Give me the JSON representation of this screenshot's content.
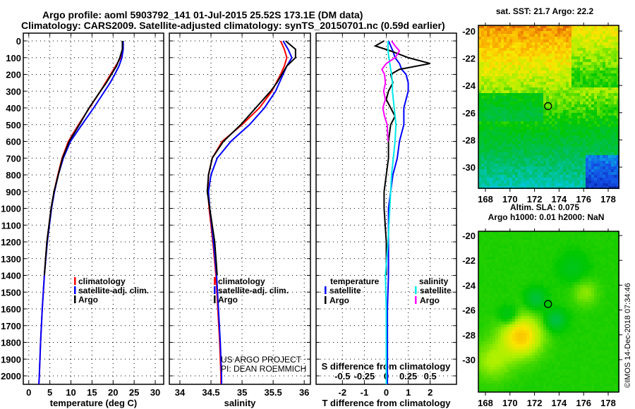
{
  "title": {
    "line1": "Argo profile: aoml 5903792_141 01-Jul-2015 25.52S 173.1E (DM data)",
    "line2": "Climatology: CARS2009. Satellite-adjusted climatology: synTS_20150701.nc (0.59d earlier)"
  },
  "credit": {
    "line1": "US ARGO PROJECT",
    "line2": "PI: DEAN ROEMMICH"
  },
  "stamp": "©IMOS 14-Dec-2018 07:34:46",
  "colors": {
    "climatology": "#ff0000",
    "satellite": "#0000ff",
    "argo": "#000000",
    "s_satellite": "#00e8e8",
    "s_argo": "#ff00ff"
  },
  "chart_data": [
    {
      "type": "line",
      "name": "temperature",
      "xlabel": "temperature (deg C)",
      "xlim": [
        -1.3,
        32
      ],
      "xticks": [
        0,
        5,
        10,
        15,
        20,
        25,
        30
      ],
      "ylim": [
        2050,
        -46
      ],
      "yticks": [
        0,
        100,
        200,
        300,
        400,
        500,
        600,
        700,
        800,
        900,
        1000,
        1100,
        1200,
        1300,
        1400,
        1500,
        1600,
        1700,
        1800,
        1900,
        2000
      ],
      "legend": [
        "climatology",
        "satellite-adj. clim.",
        "Argo"
      ],
      "depth": [
        0,
        50,
        100,
        150,
        200,
        250,
        300,
        400,
        500,
        600,
        700,
        800,
        900,
        1000,
        1200,
        1400,
        1600,
        1800,
        2000,
        2050
      ],
      "series": [
        {
          "name": "climatology",
          "values": [
            22.3,
            22.2,
            21.8,
            20.6,
            19.4,
            18.2,
            17.0,
            14.4,
            11.8,
            9.4,
            7.9,
            6.9,
            6.0,
            5.3,
            4.3,
            3.7,
            3.2,
            2.8,
            2.5,
            2.4
          ]
        },
        {
          "name": "satellite-adj. clim.",
          "values": [
            22.4,
            22.4,
            22.1,
            21.4,
            20.4,
            19.3,
            18.0,
            15.4,
            12.6,
            9.9,
            8.2,
            7.0,
            6.1,
            5.4,
            4.4,
            3.7,
            3.2,
            2.8,
            2.5,
            2.4
          ]
        },
        {
          "name": "Argo",
          "values": [
            22.2,
            22.2,
            21.6,
            20.8,
            19.6,
            18.4,
            17.0,
            14.3,
            12.0,
            9.6,
            8.0,
            7.0,
            6.0,
            5.3,
            4.3,
            3.7
          ]
        }
      ]
    },
    {
      "type": "line",
      "name": "salinity",
      "xlabel": "salinity",
      "xlim": [
        33.83,
        36.1
      ],
      "xticks": [
        34,
        34.5,
        35,
        35.5,
        36
      ],
      "legend": [
        "climatology",
        "satellite-adj. clim.",
        "Argo"
      ],
      "depth": [
        0,
        50,
        100,
        150,
        200,
        250,
        300,
        400,
        500,
        600,
        700,
        800,
        900,
        1000,
        1200,
        1400,
        1600,
        1800,
        2000,
        2050
      ],
      "series": [
        {
          "name": "climatology",
          "values": [
            35.62,
            35.68,
            35.72,
            35.68,
            35.62,
            35.55,
            35.48,
            35.28,
            35.0,
            34.68,
            34.52,
            34.46,
            34.45,
            34.47,
            34.53,
            34.58,
            34.61,
            34.64,
            34.66,
            34.66
          ]
        },
        {
          "name": "satellite-adj. clim.",
          "values": [
            35.66,
            35.74,
            35.8,
            35.72,
            35.66,
            35.6,
            35.54,
            35.36,
            35.12,
            34.82,
            34.6,
            34.5,
            34.46,
            34.48,
            34.54,
            34.59,
            34.62,
            34.65,
            34.67,
            34.67
          ]
        },
        {
          "name": "Argo",
          "values": [
            35.7,
            35.86,
            35.86,
            35.72,
            35.64,
            35.56,
            35.46,
            35.22,
            34.98,
            34.7,
            34.52,
            34.46,
            34.44,
            34.48,
            34.56,
            34.6
          ]
        }
      ]
    },
    {
      "type": "line",
      "name": "difference",
      "xlabel": "T difference from climatology",
      "xlabel2": "S difference from climatology",
      "xlim": [
        -3.2,
        3.2
      ],
      "xticks": [
        -2,
        -1,
        0,
        1,
        2
      ],
      "sticks": [
        -0.5,
        -0.25,
        0,
        0.25,
        0.5
      ],
      "sticklabels": [
        "-0.5",
        "-0.25",
        "0",
        "0.25",
        "0.5"
      ],
      "legend_t_title": "temperature",
      "legend_s_title": "salinity",
      "legend": [
        "satellite",
        "Argo",
        "satellite",
        "Argo"
      ],
      "depth": [
        0,
        30,
        60,
        100,
        135,
        170,
        200,
        250,
        300,
        350,
        400,
        450,
        500,
        600,
        700,
        800,
        900,
        1000,
        1200,
        1400,
        1600,
        1800,
        2000,
        2050
      ],
      "series": [
        {
          "name": "T satellite",
          "values": [
            0.1,
            0.2,
            0.3,
            0.4,
            0.6,
            0.7,
            0.9,
            1.0,
            1.0,
            0.9,
            0.8,
            0.8,
            0.8,
            0.6,
            0.5,
            0.3,
            0.2,
            0.1,
            0.1,
            0.1,
            0.05,
            0.05,
            0.05,
            0.05
          ]
        },
        {
          "name": "T Argo",
          "values": [
            -0.1,
            -0.5,
            0.2,
            1.0,
            2.0,
            0.6,
            0.2,
            0.3,
            0.1,
            0.0,
            0.2,
            0.4,
            0.2,
            0.1,
            0.1,
            0.0,
            -0.1,
            -0.1,
            0.0,
            0.0
          ]
        },
        {
          "name": "S satellite",
          "values": [
            0.02,
            0.02,
            0.02,
            0.03,
            0.04,
            0.05,
            0.06,
            0.07,
            0.07,
            0.08,
            0.09,
            0.1,
            0.11,
            0.1,
            0.08,
            0.06,
            0.05,
            0.04,
            0.02,
            -0.01,
            0.0,
            0.0,
            0.0,
            0.0
          ]
        },
        {
          "name": "S Argo",
          "values": [
            0.06,
            0.1,
            0.15,
            0.1,
            0.0,
            -0.05,
            -0.02,
            -0.01,
            -0.03,
            -0.01,
            -0.04,
            -0.02,
            0.01,
            0.02
          ]
        }
      ]
    },
    {
      "type": "heatmap",
      "name": "sst-map",
      "title": "sat. SST: 21.7 Argo: 22.2",
      "xlim": [
        167.4,
        178.8
      ],
      "ylim": [
        -31.5,
        -19.6
      ],
      "xticks": [
        168,
        170,
        172,
        174,
        176,
        178
      ],
      "yticks": [
        -20,
        -22,
        -24,
        -26,
        -28,
        -30
      ],
      "float_position": [
        173.1,
        -25.52
      ]
    },
    {
      "type": "heatmap",
      "name": "sla-map",
      "title": "Altim. SLA: 0.075",
      "subtitle": "Argo h1000: 0.01 h2000: NaN",
      "xlim": [
        167.4,
        178.8
      ],
      "ylim": [
        -31.4,
        -19.4
      ],
      "xticks": [
        168,
        170,
        172,
        174,
        176,
        178
      ],
      "yticks": [
        -20,
        -22,
        -24,
        -26,
        -28,
        -30
      ],
      "float_position": [
        173.1,
        -25.52
      ]
    }
  ]
}
